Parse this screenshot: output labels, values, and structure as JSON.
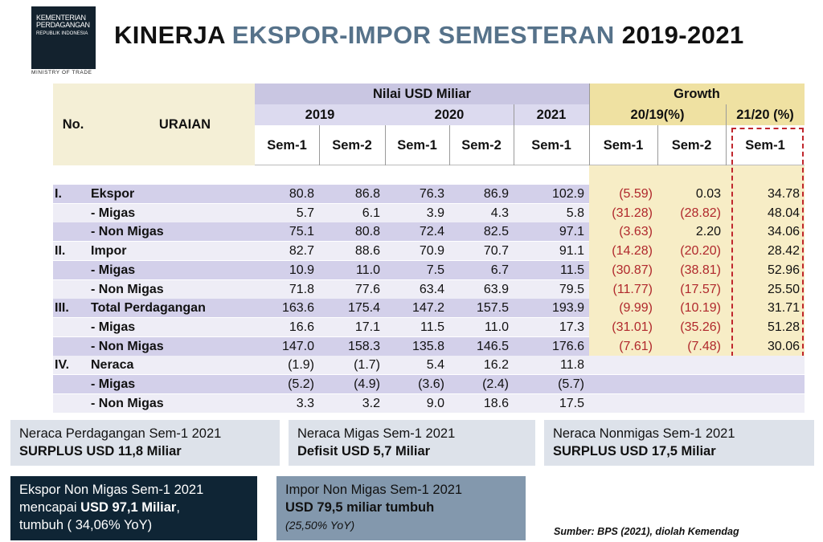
{
  "logo": {
    "line1": "KEMENTERIAN",
    "line2": "PERDAGANGAN",
    "line3": "REPUBLIK INDONESIA",
    "sub": "MINISTRY OF TRADE"
  },
  "title": {
    "part1": "KINERJA ",
    "part2": "EKSPOR-IMPOR SEMESTERAN",
    "part3": " 2019-2021"
  },
  "table": {
    "h_no": "No.",
    "h_uraian": "URAIAN",
    "h_nilai": "Nilai USD Miliar",
    "h_growth": "Growth",
    "h_2019": "2019",
    "h_2020": "2020",
    "h_2021": "2021",
    "h_g1": "20/19(%)",
    "h_g2": "21/20 (%)",
    "sub": [
      "Sem-1",
      "Sem-2",
      "Sem-1",
      "Sem-2",
      "Sem-1",
      "Sem-1",
      "Sem-2",
      "Sem-1"
    ],
    "rows": [
      {
        "no": "I.",
        "label": "Ekspor",
        "v": [
          "80.8",
          "86.8",
          "76.3",
          "86.9",
          "102.9"
        ],
        "g": [
          "(5.59)",
          "0.03",
          "34.78"
        ]
      },
      {
        "no": "",
        "label": "- Migas",
        "v": [
          "5.7",
          "6.1",
          "3.9",
          "4.3",
          "5.8"
        ],
        "g": [
          "(31.28)",
          "(28.82)",
          "48.04"
        ]
      },
      {
        "no": "",
        "label": "- Non Migas",
        "v": [
          "75.1",
          "80.8",
          "72.4",
          "82.5",
          "97.1"
        ],
        "g": [
          "(3.63)",
          "2.20",
          "34.06"
        ]
      },
      {
        "no": "II.",
        "label": "Impor",
        "v": [
          "82.7",
          "88.6",
          "70.9",
          "70.7",
          "91.1"
        ],
        "g": [
          "(14.28)",
          "(20.20)",
          "28.42"
        ]
      },
      {
        "no": "",
        "label": "- Migas",
        "v": [
          "10.9",
          "11.0",
          "7.5",
          "6.7",
          "11.5"
        ],
        "g": [
          "(30.87)",
          "(38.81)",
          "52.96"
        ]
      },
      {
        "no": "",
        "label": "- Non Migas",
        "v": [
          "71.8",
          "77.6",
          "63.4",
          "63.9",
          "79.5"
        ],
        "g": [
          "(11.77)",
          "(17.57)",
          "25.50"
        ]
      },
      {
        "no": "III.",
        "label": "Total Perdagangan",
        "v": [
          "163.6",
          "175.4",
          "147.2",
          "157.5",
          "193.9"
        ],
        "g": [
          "(9.99)",
          "(10.19)",
          "31.71"
        ]
      },
      {
        "no": "",
        "label": "- Migas",
        "v": [
          "16.6",
          "17.1",
          "11.5",
          "11.0",
          "17.3"
        ],
        "g": [
          "(31.01)",
          "(35.26)",
          "51.28"
        ]
      },
      {
        "no": "",
        "label": "- Non Migas",
        "v": [
          "147.0",
          "158.3",
          "135.8",
          "146.5",
          "176.6"
        ],
        "g": [
          "(7.61)",
          "(7.48)",
          "30.06"
        ]
      },
      {
        "no": "IV.",
        "label": "Neraca",
        "v": [
          "(1.9)",
          "(1.7)",
          "5.4",
          "16.2",
          "11.8"
        ],
        "g": []
      },
      {
        "no": "",
        "label": "- Migas",
        "v": [
          "(5.2)",
          "(4.9)",
          "(3.6)",
          "(2.4)",
          "(5.7)"
        ],
        "g": []
      },
      {
        "no": "",
        "label": "- Non Migas",
        "v": [
          "3.3",
          "3.2",
          "9.0",
          "18.6",
          "17.5"
        ],
        "g": []
      }
    ]
  },
  "boxes": {
    "b1": {
      "line1": "Neraca Perdagangan Sem-1 2021",
      "line2": "SURPLUS USD 11,8 Miliar"
    },
    "b2": {
      "line1": "Neraca Migas Sem-1 2021",
      "line2": "Defisit USD 5,7 Miliar"
    },
    "b3": {
      "line1": "Neraca Nonmigas Sem-1 2021",
      "line2": "SURPLUS USD 17,5 Miliar"
    },
    "b4": {
      "line1": "Ekspor Non Migas Sem-1 2021",
      "line2a": "mencapai ",
      "line2b": "USD 97,1 Miliar",
      "line2c": ",",
      "line3": "tumbuh ( 34,06% YoY)"
    },
    "b5": {
      "line1": "Impor Non Migas Sem-1 2021",
      "line2": "USD 79,5 miliar tumbuh",
      "line3": "(25,50% YoY)"
    }
  },
  "source": "Sumber: BPS  (2021), diolah Kemendag",
  "colors": {
    "header_purple": "#c9c6e2",
    "row_purple": "#d3d0ea",
    "growth_yellow": "#f7edc6",
    "growth_header": "#efe1a2",
    "negative": "#b0282c",
    "dashed_red": "#c0262d",
    "navy_box": "#0f2535",
    "slate_box": "#8398ad",
    "light_box": "#dde2ea"
  }
}
